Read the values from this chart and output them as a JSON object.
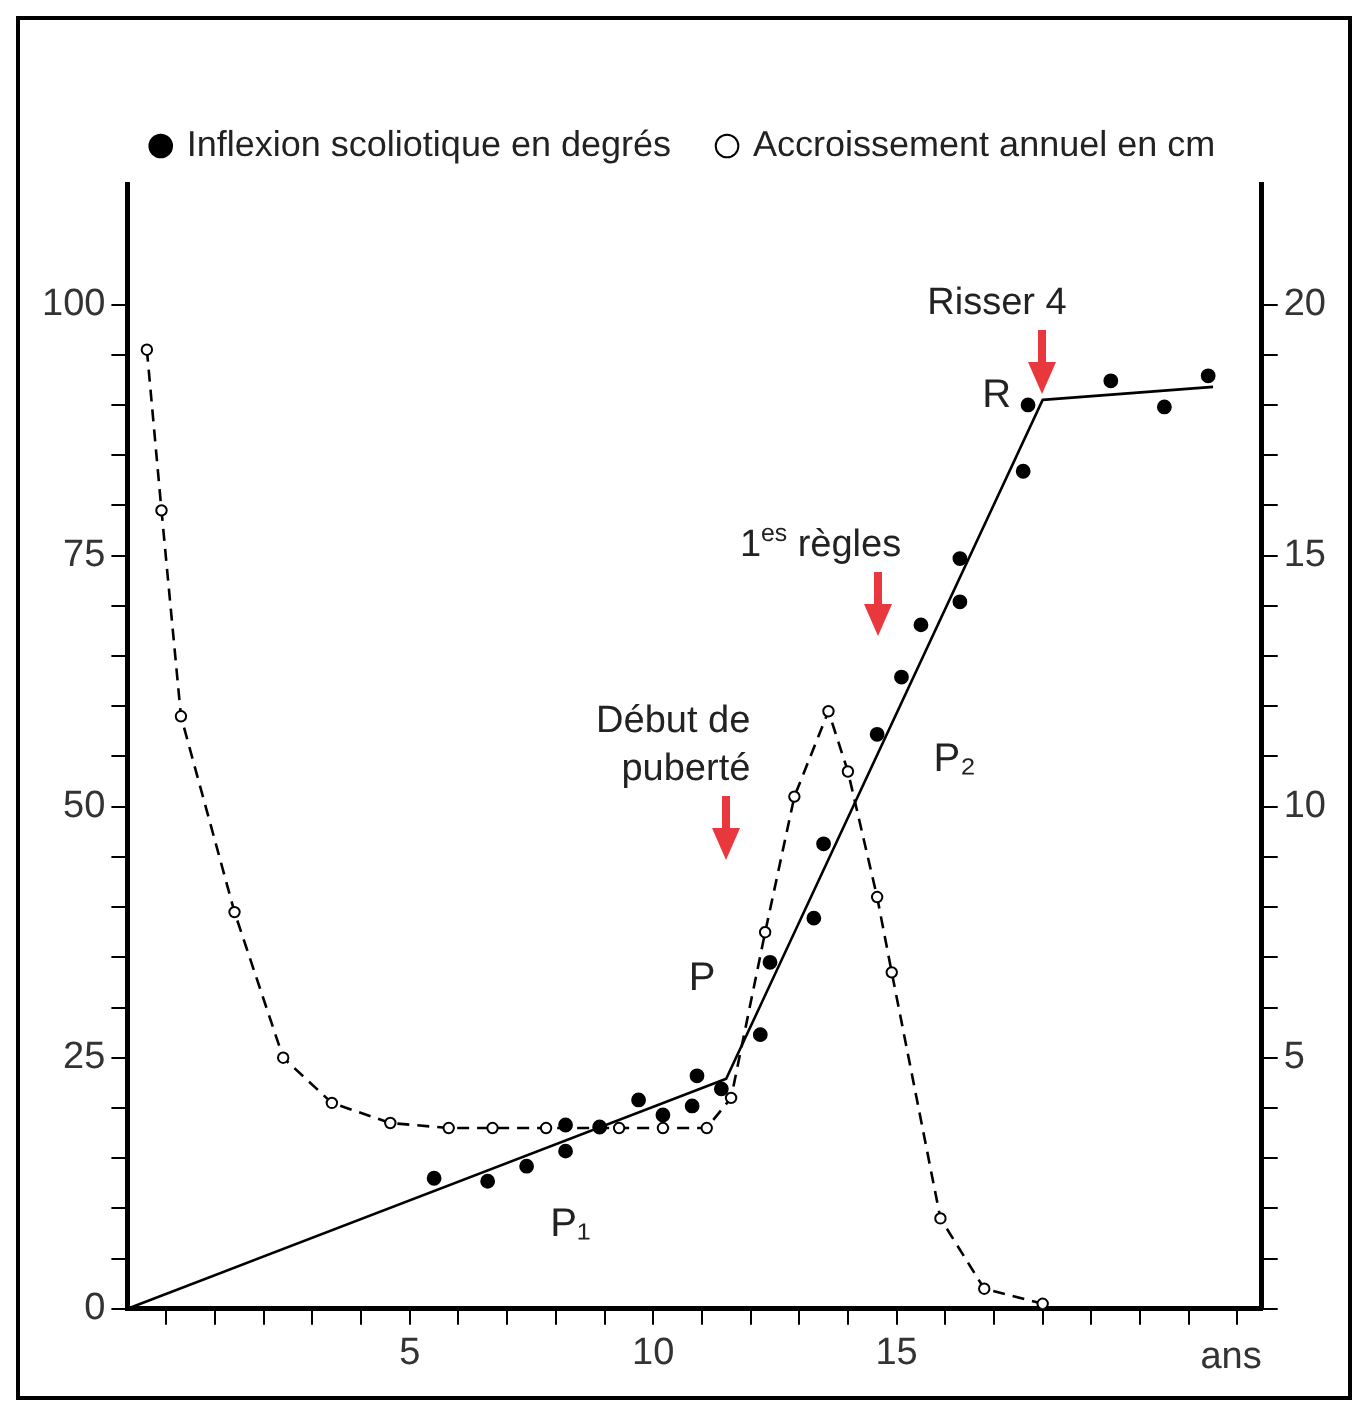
{
  "chart_data": {
    "type": "scatter",
    "xlabel": "ans",
    "legend": "top",
    "grid": false,
    "xlim": [
      -0.8,
      22.5
    ],
    "xticks": [
      {
        "value": 0,
        "label": null
      },
      {
        "value": 1,
        "label": null
      },
      {
        "value": 2,
        "label": null
      },
      {
        "value": 3,
        "label": null
      },
      {
        "value": 4,
        "label": null
      },
      5,
      {
        "value": 6,
        "label": null
      },
      {
        "value": 7,
        "label": null
      },
      {
        "value": 8,
        "label": null
      },
      {
        "value": 9,
        "label": null
      },
      10,
      {
        "value": 11,
        "label": null
      },
      {
        "value": 12,
        "label": null
      },
      {
        "value": 13,
        "label": null
      },
      {
        "value": 14,
        "label": null
      },
      15,
      {
        "value": 16,
        "label": null
      },
      {
        "value": 17,
        "label": null
      },
      {
        "value": 18,
        "label": null
      },
      {
        "value": 19,
        "label": null
      },
      {
        "value": 20,
        "label": null
      },
      {
        "value": 21,
        "label": null
      },
      {
        "value": 22,
        "label": null
      }
    ],
    "ylim": [
      0,
      112
    ],
    "yticks": [
      0,
      {
        "value": 5,
        "label": null
      },
      {
        "value": 10,
        "label": null
      },
      {
        "value": 15,
        "label": null
      },
      {
        "value": 20,
        "label": null
      },
      25,
      {
        "value": 30,
        "label": null
      },
      {
        "value": 35,
        "label": null
      },
      {
        "value": 40,
        "label": null
      },
      {
        "value": 45,
        "label": null
      },
      50,
      {
        "value": 55,
        "label": null
      },
      {
        "value": 60,
        "label": null
      },
      {
        "value": 65,
        "label": null
      },
      {
        "value": 70,
        "label": null
      },
      75,
      {
        "value": 80,
        "label": null
      },
      {
        "value": 85,
        "label": null
      },
      {
        "value": 90,
        "label": null
      },
      {
        "value": 95,
        "label": null
      },
      100
    ],
    "y2lim": [
      0,
      22.4
    ],
    "y2ticks": [
      {
        "value": 0,
        "label": null
      },
      {
        "value": 1,
        "label": null
      },
      {
        "value": 2,
        "label": null
      },
      {
        "value": 3,
        "label": null
      },
      {
        "value": 4,
        "label": null
      },
      5,
      {
        "value": 6,
        "label": null
      },
      {
        "value": 7,
        "label": null
      },
      {
        "value": 8,
        "label": null
      },
      {
        "value": 9,
        "label": null
      },
      10,
      {
        "value": 11,
        "label": null
      },
      {
        "value": 12,
        "label": null
      },
      {
        "value": 13,
        "label": null
      },
      {
        "value": 14,
        "label": null
      },
      15,
      {
        "value": 16,
        "label": null
      },
      {
        "value": 17,
        "label": null
      },
      {
        "value": 18,
        "label": null
      },
      {
        "value": 19,
        "label": null
      },
      20
    ],
    "series": [
      {
        "name": "Inflexion scoliotique en degrés",
        "type": "scatter",
        "color": "#000000",
        "marker": "circle",
        "axis": "y",
        "x": [
          5.5,
          6.6,
          7.4,
          8.2,
          8.2,
          8.9,
          9.7,
          10.2,
          10.8,
          10.9,
          11.4,
          12.2,
          12.4,
          13.3,
          13.5,
          14.6,
          15.1,
          15.5,
          16.3,
          16.3,
          17.6,
          17.7,
          19.4,
          20.5,
          21.4
        ],
        "values": [
          13.0,
          12.7,
          14.2,
          15.7,
          18.3,
          18.1,
          20.8,
          19.3,
          20.2,
          23.2,
          21.9,
          27.3,
          34.5,
          38.9,
          46.3,
          57.2,
          62.9,
          68.1,
          70.4,
          74.7,
          83.4,
          90.0,
          92.4,
          89.8,
          92.9
        ]
      },
      {
        "type": "line",
        "color": "#000000",
        "marker": "none",
        "line_style": "solid",
        "axis": "y",
        "x": [
          -0.8,
          11.5,
          18.0,
          21.5
        ],
        "values": [
          0,
          22.9,
          90.5,
          91.8
        ]
      },
      {
        "name": "Accroissement annuel en cm",
        "type": "line",
        "color": "#000000",
        "marker": "circle",
        "line_style": "dashed",
        "axis": "y2",
        "x": [
          -0.4,
          -0.1,
          0.3,
          1.4,
          2.4,
          3.4,
          4.6,
          5.8,
          6.7,
          7.8,
          9.3,
          10.2,
          11.1,
          11.6,
          12.3,
          12.9,
          13.6,
          14.0,
          14.6,
          14.9,
          15.9,
          16.8,
          18.0
        ],
        "values": [
          19.1,
          15.9,
          11.8,
          7.9,
          5.0,
          4.1,
          3.7,
          3.6,
          3.6,
          3.6,
          3.6,
          3.6,
          3.6,
          4.2,
          7.5,
          10.2,
          11.9,
          10.7,
          8.2,
          6.7,
          1.8,
          0.4,
          0.1
        ]
      }
    ],
    "annotations": [
      "Début de puberté",
      "1$^{es}$ règles",
      {
        "text": "Risser 4",
        "x": 18.0,
        "y": 90.5
      },
      {
        "text": "P",
        "x": 11.5,
        "y": 22.9
      },
      {
        "text": "R",
        "x": 18.0,
        "y": 90.5
      },
      {
        "text": "P₁",
        "x": 8.3,
        "y": 16.9
      },
      {
        "text": "P₂",
        "x": 14.55,
        "y": 54.6
      }
    ]
  }
}
